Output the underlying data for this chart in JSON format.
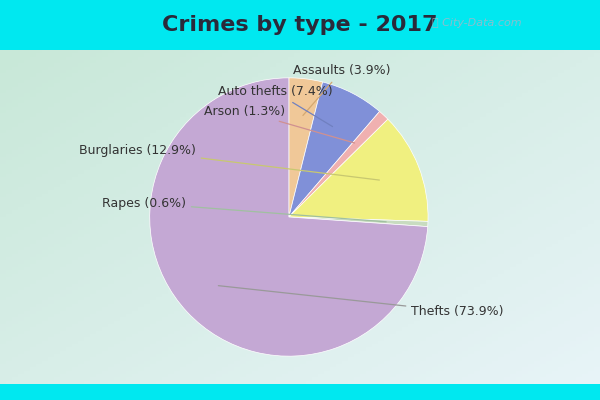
{
  "title": "Crimes by type - 2017",
  "slices": [
    {
      "label": "Thefts",
      "pct": 73.9,
      "color": "#c4a8d4"
    },
    {
      "label": "Rapes",
      "pct": 0.6,
      "color": "#c8dcc0"
    },
    {
      "label": "Burglaries",
      "pct": 12.9,
      "color": "#f0f080"
    },
    {
      "label": "Arson",
      "pct": 1.3,
      "color": "#f0b0b0"
    },
    {
      "label": "Auto thefts",
      "pct": 7.4,
      "color": "#8090d8"
    },
    {
      "label": "Assaults",
      "pct": 3.9,
      "color": "#f0c898"
    }
  ],
  "bg_cyan": "#00e8f0",
  "bg_main_tl": "#c8e8d8",
  "bg_main_br": "#e8f4f8",
  "title_fontsize": 16,
  "label_fontsize": 9,
  "title_color": "#2a2a3a",
  "label_color": "#333333",
  "top_bar_height": 0.125,
  "bottom_bar_height": 0.04,
  "watermark": "City-Data.com"
}
